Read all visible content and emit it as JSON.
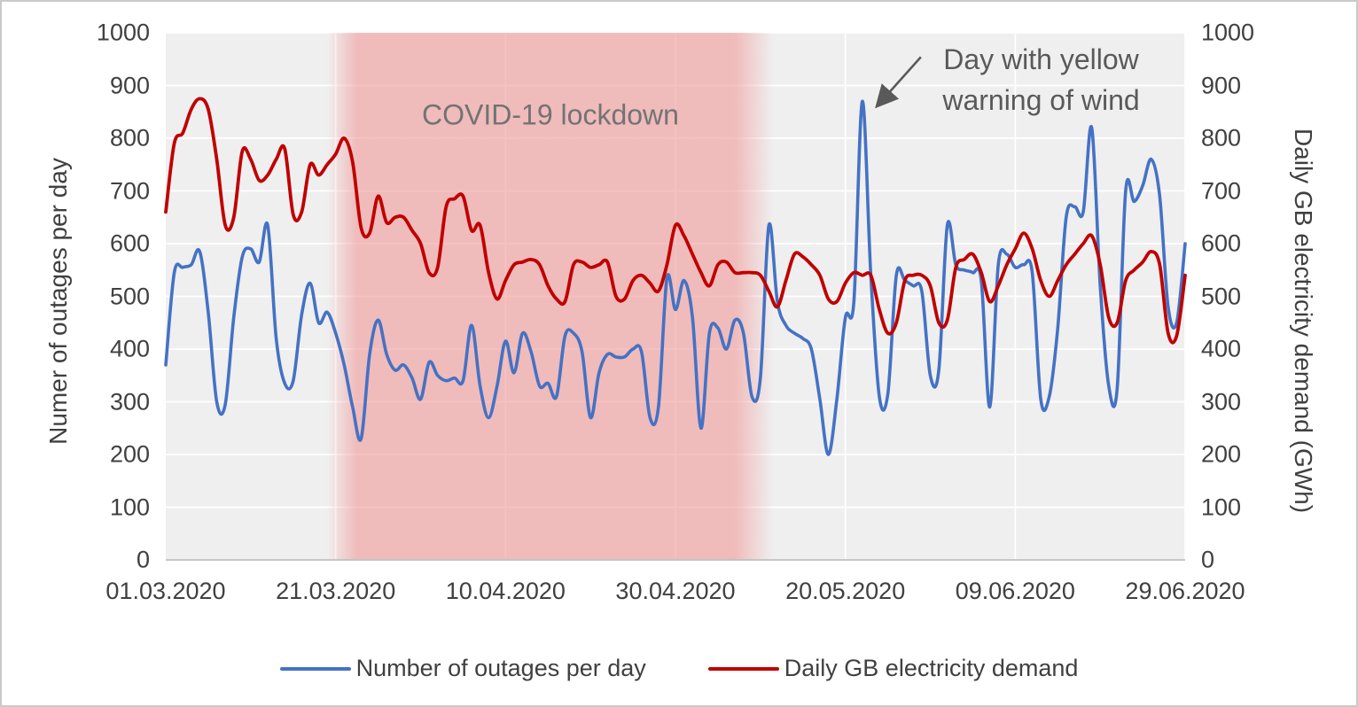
{
  "chart_data": {
    "type": "line",
    "left_axis_label": "Numer of outages per day",
    "right_axis_label": "Daily GB electricity demand (GWh)",
    "ylim": [
      0,
      1000
    ],
    "y_ticks": [
      0,
      100,
      200,
      300,
      400,
      500,
      600,
      700,
      800,
      900,
      1000
    ],
    "x_tick_labels": [
      "01.03.2020",
      "21.03.2020",
      "10.04.2020",
      "30.04.2020",
      "20.05.2020",
      "09.06.2020",
      "29.06.2020"
    ],
    "x_tick_days": [
      0,
      20,
      40,
      60,
      80,
      100,
      120
    ],
    "grid": true,
    "plot_bg": "#efefef",
    "series": [
      {
        "name": "Number of outages per day",
        "color": "#4472C4",
        "width": 3.6,
        "values": [
          370,
          545,
          555,
          560,
          585,
          470,
          300,
          295,
          460,
          575,
          590,
          565,
          635,
          420,
          335,
          340,
          465,
          525,
          450,
          470,
          430,
          370,
          290,
          230,
          390,
          455,
          390,
          360,
          370,
          345,
          305,
          375,
          350,
          340,
          345,
          340,
          445,
          330,
          270,
          330,
          415,
          355,
          430,
          395,
          330,
          335,
          310,
          425,
          430,
          395,
          270,
          355,
          390,
          385,
          385,
          400,
          395,
          270,
          290,
          535,
          475,
          530,
          460,
          250,
          430,
          440,
          400,
          455,
          430,
          310,
          345,
          635,
          490,
          445,
          430,
          420,
          400,
          305,
          200,
          305,
          460,
          490,
          870,
          540,
          310,
          315,
          540,
          530,
          520,
          510,
          350,
          360,
          635,
          560,
          550,
          545,
          530,
          290,
          560,
          580,
          555,
          560,
          545,
          305,
          310,
          440,
          650,
          670,
          660,
          820,
          520,
          330,
          325,
          700,
          680,
          710,
          760,
          690,
          480,
          450,
          600
        ]
      },
      {
        "name": "Daily GB electricity demand",
        "color": "#C00000",
        "width": 3.8,
        "values": [
          660,
          790,
          810,
          855,
          875,
          855,
          760,
          635,
          650,
          775,
          760,
          720,
          730,
          760,
          780,
          655,
          660,
          750,
          730,
          750,
          770,
          800,
          755,
          630,
          620,
          690,
          640,
          650,
          650,
          625,
          600,
          545,
          555,
          670,
          685,
          690,
          625,
          635,
          545,
          495,
          530,
          560,
          565,
          570,
          560,
          520,
          495,
          490,
          560,
          565,
          555,
          560,
          565,
          500,
          495,
          530,
          540,
          525,
          510,
          560,
          635,
          615,
          580,
          545,
          520,
          560,
          565,
          545,
          545,
          545,
          540,
          510,
          480,
          530,
          580,
          575,
          560,
          540,
          495,
          490,
          525,
          545,
          540,
          540,
          475,
          430,
          450,
          530,
          540,
          540,
          520,
          450,
          455,
          555,
          570,
          580,
          545,
          490,
          520,
          560,
          590,
          620,
          590,
          530,
          500,
          530,
          560,
          580,
          600,
          615,
          560,
          460,
          450,
          530,
          550,
          565,
          585,
          560,
          430,
          425,
          540
        ]
      }
    ],
    "lockdown_band": {
      "label": "COVID-19 lockdown",
      "color": "#F09898",
      "start_day": 19,
      "solid_start_day": 22.5,
      "solid_end_day": 67,
      "end_day": 71.5
    },
    "annotation": {
      "line1": "Day with yellow",
      "line2": "warning of wind",
      "target_day": 82,
      "target_value": 870,
      "arrow_color": "#595959"
    }
  },
  "legend": {
    "items": [
      {
        "label": "Number of outages per day",
        "color": "#4472C4"
      },
      {
        "label": "Daily GB electricity demand",
        "color": "#C00000"
      }
    ]
  }
}
